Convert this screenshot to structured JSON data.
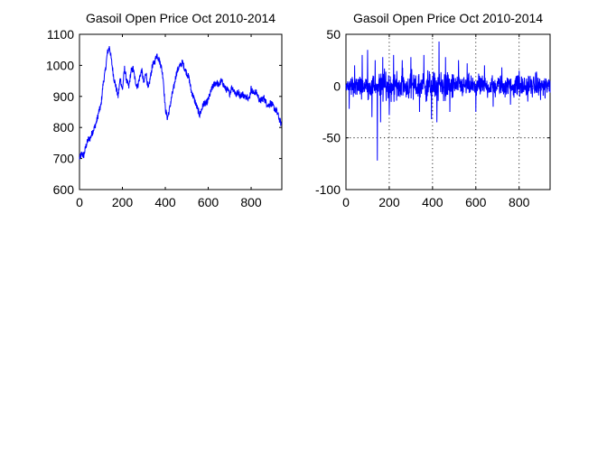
{
  "chart_data": [
    {
      "type": "line",
      "title": "Gasoil Open Price Oct 2010-2014",
      "xlabel": "",
      "ylabel": "",
      "xlim": [
        0,
        943
      ],
      "ylim": [
        600,
        1100
      ],
      "xticks": [
        0,
        200,
        400,
        600,
        800
      ],
      "yticks": [
        600,
        700,
        800,
        900,
        1000,
        1100
      ],
      "xtick_labels": [
        "0",
        "200",
        "400",
        "600",
        "800"
      ],
      "ytick_labels": [
        "600",
        "700",
        "800",
        "900",
        "1000",
        "1100"
      ],
      "grid": false,
      "color": "#0000ff",
      "key_points": [
        [
          0,
          700
        ],
        [
          10,
          715
        ],
        [
          20,
          710
        ],
        [
          30,
          740
        ],
        [
          40,
          760
        ],
        [
          50,
          765
        ],
        [
          60,
          785
        ],
        [
          70,
          800
        ],
        [
          80,
          820
        ],
        [
          90,
          850
        ],
        [
          100,
          870
        ],
        [
          110,
          940
        ],
        [
          120,
          980
        ],
        [
          130,
          1040
        ],
        [
          140,
          1060
        ],
        [
          150,
          1010
        ],
        [
          160,
          960
        ],
        [
          170,
          930
        ],
        [
          180,
          900
        ],
        [
          190,
          960
        ],
        [
          200,
          920
        ],
        [
          210,
          990
        ],
        [
          220,
          950
        ],
        [
          230,
          930
        ],
        [
          240,
          980
        ],
        [
          250,
          990
        ],
        [
          260,
          950
        ],
        [
          270,
          930
        ],
        [
          280,
          960
        ],
        [
          290,
          985
        ],
        [
          300,
          940
        ],
        [
          310,
          980
        ],
        [
          320,
          920
        ],
        [
          330,
          960
        ],
        [
          340,
          1000
        ],
        [
          350,
          1010
        ],
        [
          360,
          1035
        ],
        [
          370,
          1020
        ],
        [
          380,
          1000
        ],
        [
          390,
          960
        ],
        [
          400,
          860
        ],
        [
          410,
          830
        ],
        [
          420,
          860
        ],
        [
          430,
          900
        ],
        [
          440,
          930
        ],
        [
          450,
          970
        ],
        [
          460,
          990
        ],
        [
          470,
          1000
        ],
        [
          480,
          1010
        ],
        [
          490,
          990
        ],
        [
          500,
          975
        ],
        [
          510,
          960
        ],
        [
          520,
          920
        ],
        [
          530,
          900
        ],
        [
          540,
          880
        ],
        [
          550,
          860
        ],
        [
          560,
          840
        ],
        [
          570,
          860
        ],
        [
          580,
          880
        ],
        [
          590,
          875
        ],
        [
          600,
          890
        ],
        [
          610,
          910
        ],
        [
          620,
          930
        ],
        [
          630,
          940
        ],
        [
          640,
          945
        ],
        [
          650,
          935
        ],
        [
          660,
          950
        ],
        [
          670,
          940
        ],
        [
          680,
          925
        ],
        [
          690,
          920
        ],
        [
          700,
          910
        ],
        [
          710,
          930
        ],
        [
          720,
          920
        ],
        [
          730,
          905
        ],
        [
          740,
          915
        ],
        [
          750,
          900
        ],
        [
          760,
          910
        ],
        [
          770,
          895
        ],
        [
          780,
          905
        ],
        [
          790,
          890
        ],
        [
          800,
          925
        ],
        [
          810,
          910
        ],
        [
          820,
          915
        ],
        [
          830,
          905
        ],
        [
          840,
          885
        ],
        [
          850,
          890
        ],
        [
          860,
          895
        ],
        [
          870,
          880
        ],
        [
          880,
          870
        ],
        [
          890,
          880
        ],
        [
          900,
          870
        ],
        [
          910,
          860
        ],
        [
          920,
          850
        ],
        [
          930,
          830
        ],
        [
          940,
          810
        ]
      ]
    },
    {
      "type": "line",
      "title": "Gasoil Open Price Oct 2010-2014",
      "xlabel": "",
      "ylabel": "",
      "xlim": [
        0,
        943
      ],
      "ylim": [
        -100,
        50
      ],
      "xticks": [
        0,
        200,
        400,
        600,
        800
      ],
      "yticks": [
        -100,
        -50,
        0,
        50
      ],
      "xtick_labels": [
        "0",
        "200",
        "400",
        "600",
        "800"
      ],
      "ytick_labels": [
        "-100",
        "-50",
        "0",
        "50"
      ],
      "grid": true,
      "color": "#0000ff",
      "spikes": [
        [
          15,
          -22
        ],
        [
          40,
          20
        ],
        [
          75,
          30
        ],
        [
          100,
          35
        ],
        [
          120,
          -30
        ],
        [
          135,
          25
        ],
        [
          145,
          -72
        ],
        [
          160,
          -35
        ],
        [
          170,
          28
        ],
        [
          200,
          -28
        ],
        [
          220,
          30
        ],
        [
          260,
          25
        ],
        [
          300,
          28
        ],
        [
          340,
          -25
        ],
        [
          360,
          30
        ],
        [
          395,
          -32
        ],
        [
          420,
          -35
        ],
        [
          430,
          43
        ],
        [
          460,
          28
        ],
        [
          480,
          -25
        ],
        [
          520,
          25
        ],
        [
          560,
          22
        ],
        [
          600,
          -25
        ],
        [
          640,
          20
        ],
        [
          680,
          -20
        ],
        [
          720,
          18
        ],
        [
          760,
          -18
        ],
        [
          800,
          15
        ],
        [
          840,
          -15
        ],
        [
          880,
          14
        ],
        [
          920,
          -12
        ]
      ]
    }
  ]
}
